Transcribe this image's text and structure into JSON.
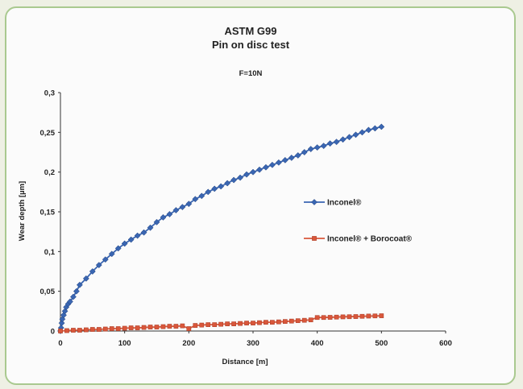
{
  "chart_data": {
    "type": "line",
    "title": "ASTM G99",
    "subtitle": "Pin on disc test",
    "annotation": "F=10N",
    "xlabel": "Distance [m]",
    "ylabel": "Wear depth [µm]",
    "xlim": [
      0,
      600
    ],
    "ylim": [
      0,
      0.3
    ],
    "xticks": [
      "0",
      "100",
      "200",
      "300",
      "400",
      "500",
      "600"
    ],
    "yticks": [
      "0",
      "0,05",
      "0,1",
      "0,15",
      "0,2",
      "0,25",
      "0,3"
    ],
    "grid": false,
    "legend": "right",
    "series": [
      {
        "name": "Inconel®",
        "color": "#3a66b2",
        "marker": "diamond",
        "x": [
          0,
          1,
          2,
          3,
          5,
          7,
          9,
          12,
          15,
          20,
          25,
          30,
          40,
          50,
          60,
          70,
          80,
          90,
          100,
          110,
          120,
          130,
          140,
          150,
          160,
          170,
          180,
          190,
          200,
          210,
          220,
          230,
          240,
          250,
          260,
          270,
          280,
          290,
          300,
          310,
          320,
          330,
          340,
          350,
          360,
          370,
          380,
          390,
          400,
          410,
          420,
          430,
          440,
          450,
          460,
          470,
          480,
          490,
          500
        ],
        "y": [
          0,
          0.004,
          0.01,
          0.015,
          0.02,
          0.025,
          0.03,
          0.034,
          0.037,
          0.043,
          0.05,
          0.058,
          0.066,
          0.075,
          0.083,
          0.09,
          0.097,
          0.104,
          0.11,
          0.115,
          0.12,
          0.124,
          0.13,
          0.137,
          0.143,
          0.147,
          0.152,
          0.156,
          0.16,
          0.166,
          0.17,
          0.175,
          0.179,
          0.182,
          0.186,
          0.19,
          0.193,
          0.197,
          0.2,
          0.203,
          0.206,
          0.209,
          0.212,
          0.215,
          0.218,
          0.221,
          0.225,
          0.229,
          0.231,
          0.233,
          0.236,
          0.238,
          0.241,
          0.244,
          0.247,
          0.25,
          0.253,
          0.255,
          0.257
        ]
      },
      {
        "name": "Inconel® + Borocoat®",
        "color": "#d9573b",
        "marker": "square",
        "x": [
          0,
          10,
          20,
          30,
          40,
          50,
          60,
          70,
          80,
          90,
          100,
          110,
          120,
          130,
          140,
          150,
          160,
          170,
          180,
          190,
          200,
          210,
          220,
          230,
          240,
          250,
          260,
          270,
          280,
          290,
          300,
          310,
          320,
          330,
          340,
          350,
          360,
          370,
          380,
          390,
          400,
          410,
          420,
          430,
          440,
          450,
          460,
          470,
          480,
          490,
          500
        ],
        "y": [
          0,
          0.0005,
          0.001,
          0.001,
          0.0015,
          0.002,
          0.002,
          0.0025,
          0.003,
          0.003,
          0.0035,
          0.004,
          0.004,
          0.0045,
          0.005,
          0.005,
          0.0055,
          0.006,
          0.006,
          0.0065,
          0.003,
          0.007,
          0.0075,
          0.008,
          0.008,
          0.0085,
          0.009,
          0.009,
          0.0095,
          0.01,
          0.01,
          0.0105,
          0.011,
          0.011,
          0.0115,
          0.012,
          0.0125,
          0.013,
          0.0135,
          0.014,
          0.017,
          0.017,
          0.0172,
          0.0175,
          0.0178,
          0.018,
          0.0182,
          0.0185,
          0.0188,
          0.019,
          0.0192
        ]
      }
    ]
  }
}
